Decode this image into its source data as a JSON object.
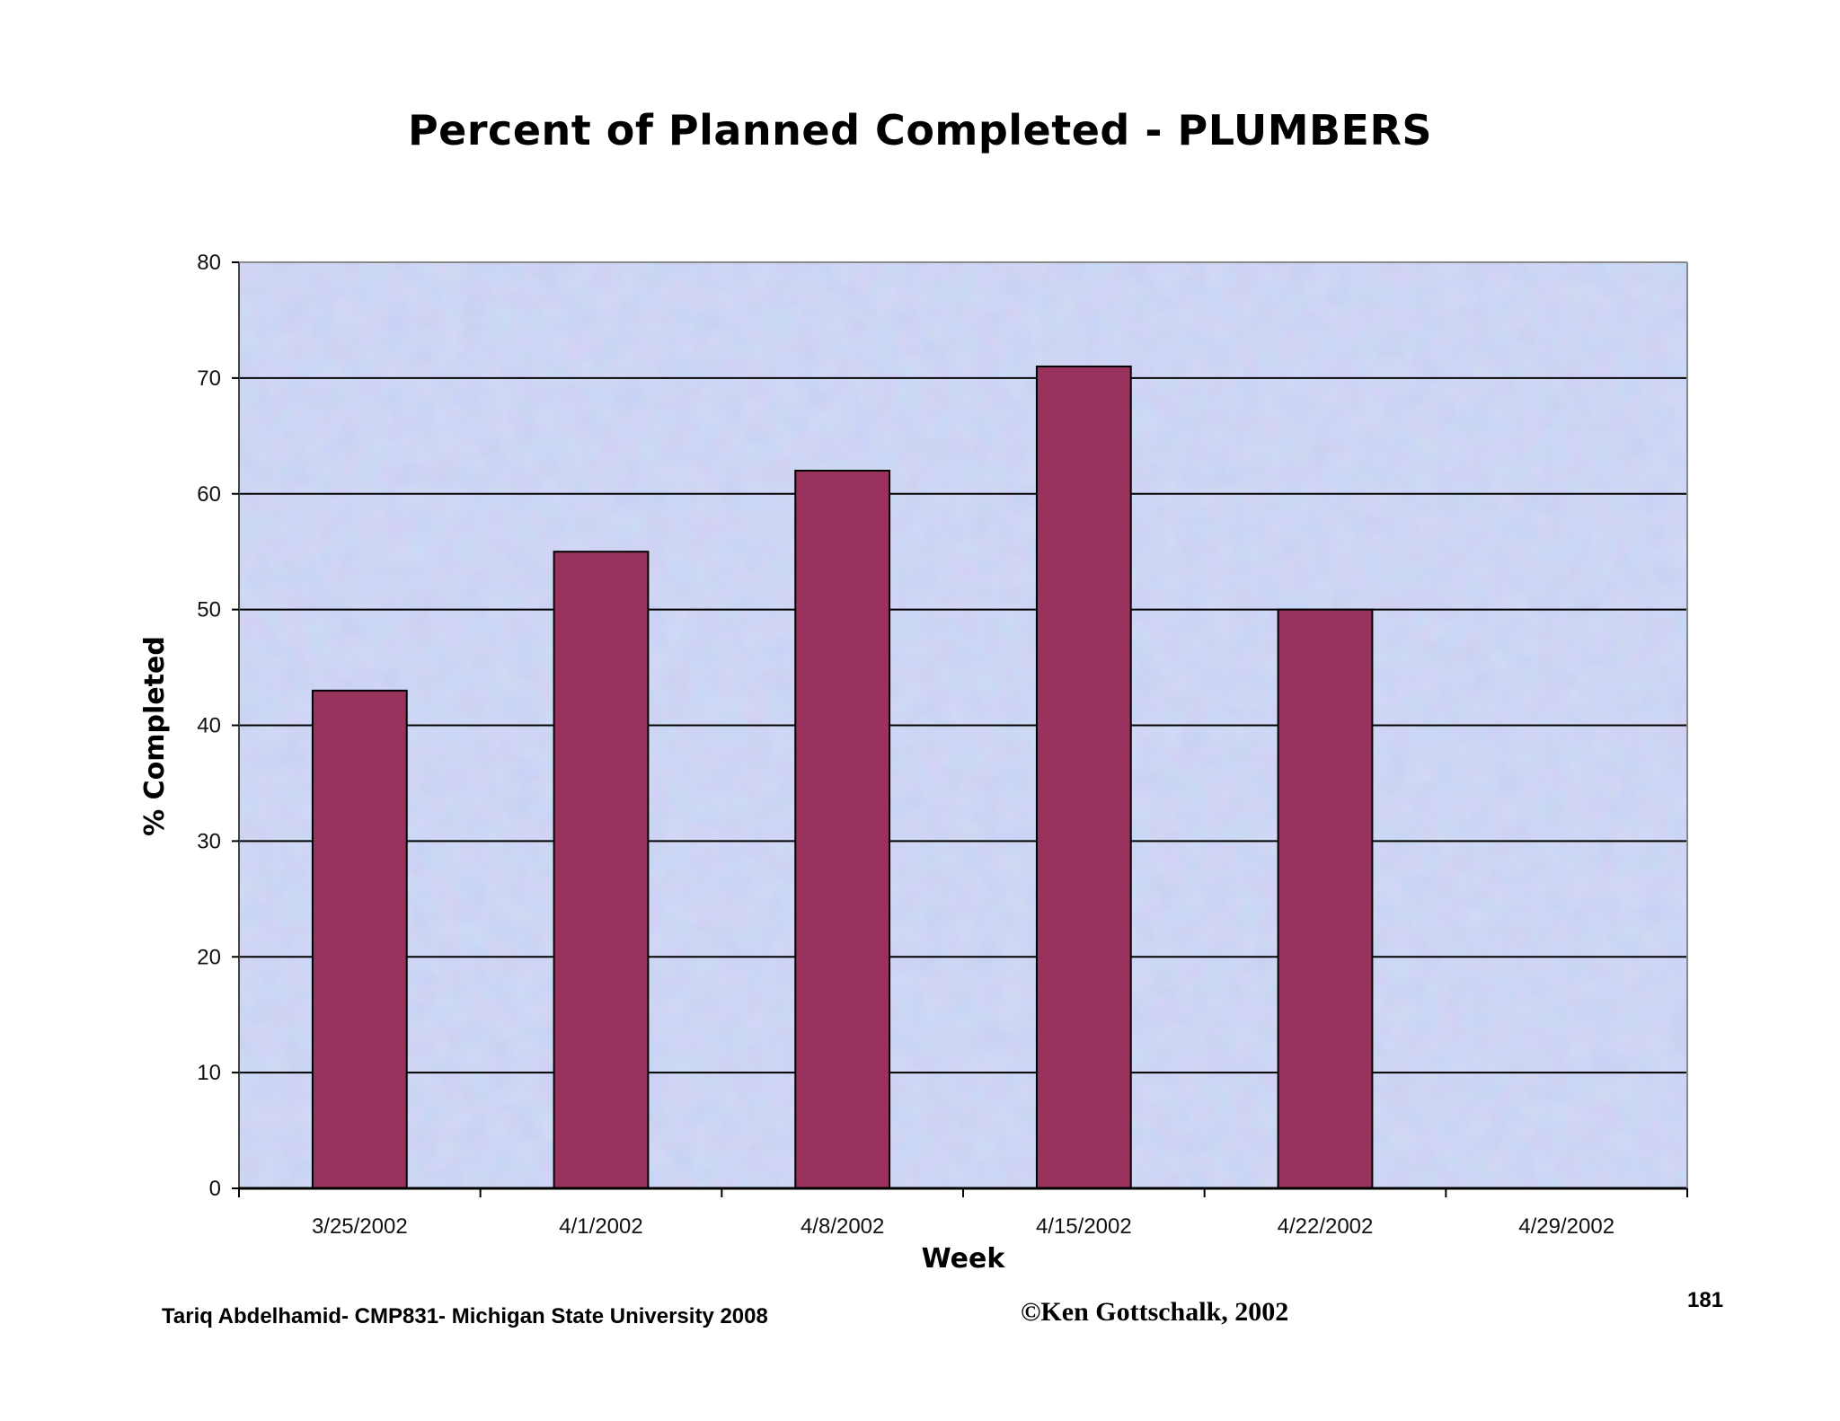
{
  "chart_data": {
    "type": "bar",
    "title": "Percent of Planned Completed - PLUMBERS",
    "xlabel": "Week",
    "ylabel": "% Completed",
    "categories": [
      "3/25/2002",
      "4/1/2002",
      "4/8/2002",
      "4/15/2002",
      "4/22/2002",
      "4/29/2002"
    ],
    "values": [
      43,
      55,
      62,
      71,
      50,
      null
    ],
    "ylim": [
      0,
      80
    ],
    "yticks": [
      0,
      10,
      20,
      30,
      40,
      50,
      60,
      70,
      80
    ],
    "grid": true,
    "legend": "none",
    "bar_color": "#9a325e",
    "plot_background": "#b8c4ee"
  },
  "footer": {
    "left": "Tariq Abdelhamid- CMP831- Michigan State University 2008",
    "center": "©Ken Gottschalk, 2002",
    "page_number": "181"
  }
}
